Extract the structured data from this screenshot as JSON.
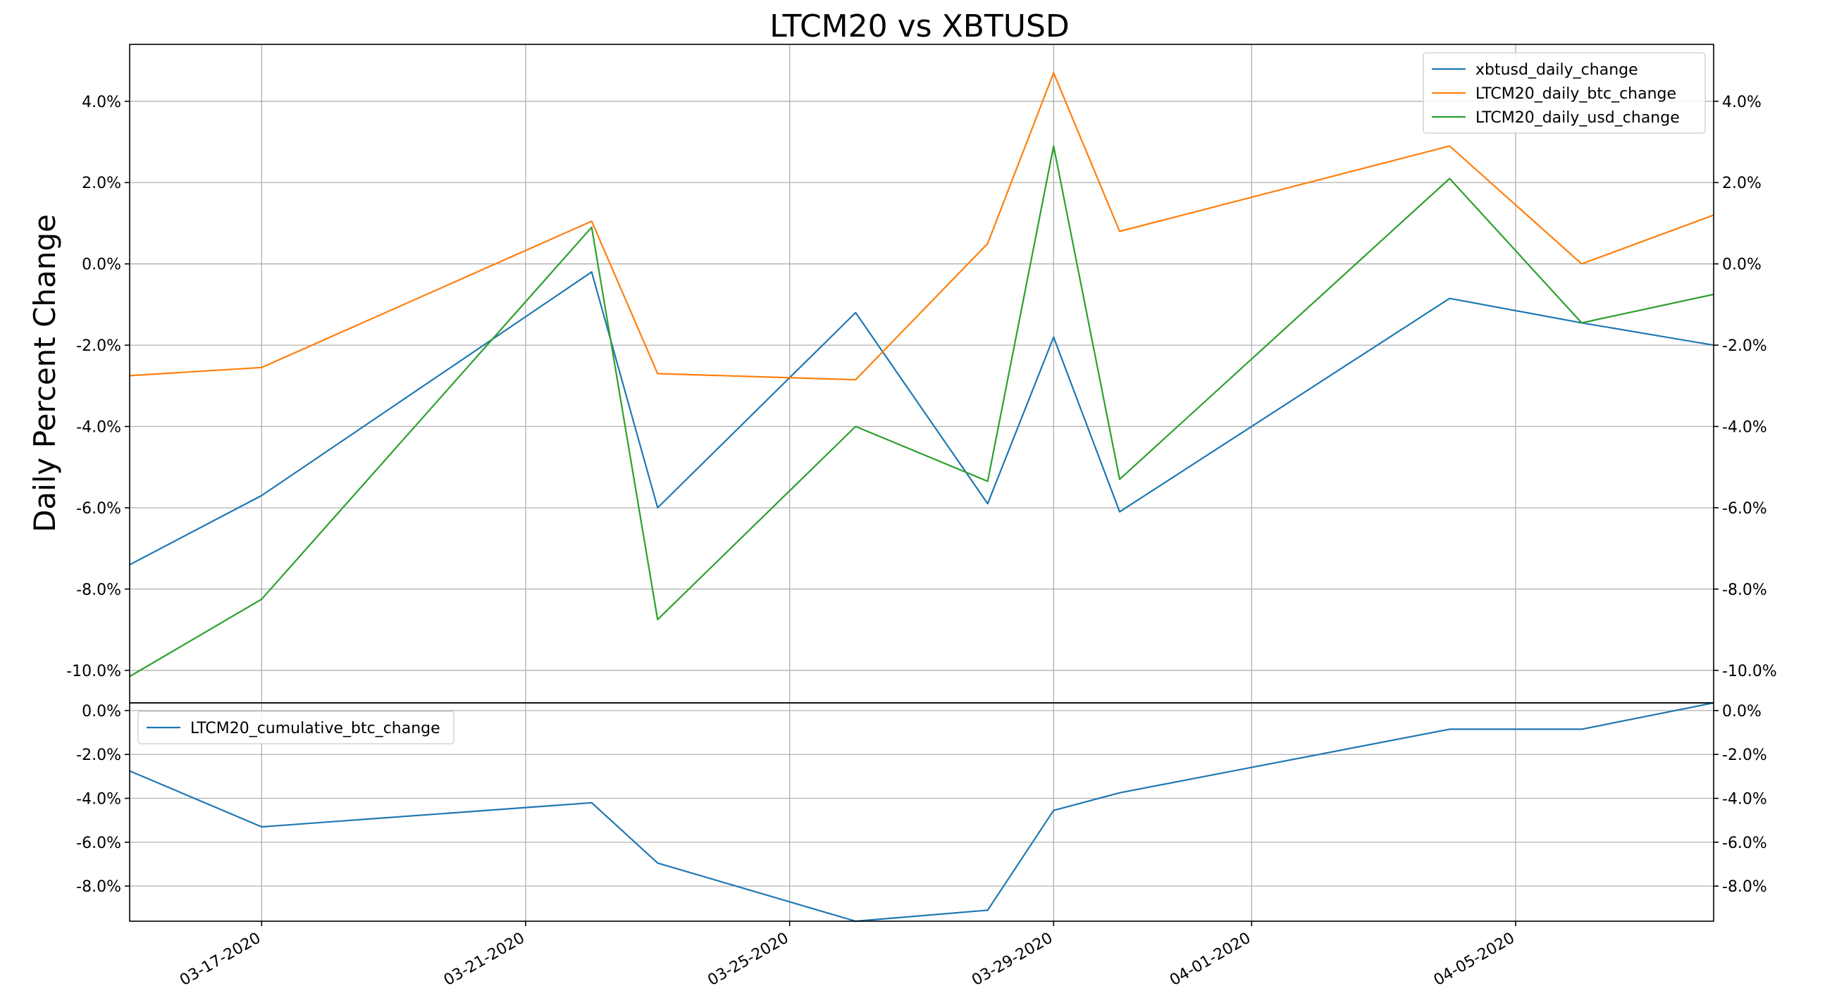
{
  "chart_data": {
    "type": "line",
    "title": "LTCM20 vs XBTUSD",
    "ylabel": "Daily Percent Change",
    "x": [
      "03-15-2020",
      "03-17-2020",
      "03-22-2020",
      "03-23-2020",
      "03-26-2020",
      "03-28-2020",
      "03-29-2020",
      "03-30-2020",
      "04-04-2020",
      "04-06-2020",
      "04-08-2020"
    ],
    "x_ticks": [
      "03-17-2020",
      "03-21-2020",
      "03-25-2020",
      "03-29-2020",
      "04-01-2020",
      "04-05-2020"
    ],
    "panels": [
      {
        "ylim": [
          -10.8,
          5.4
        ],
        "yticks": [
          4,
          2,
          0,
          -2,
          -4,
          -6,
          -8,
          -10
        ],
        "y_tick_labels": [
          "4.0%",
          "2.0%",
          "0.0%",
          "-2.0%",
          "-4.0%",
          "-6.0%",
          "-8.0%",
          "-10.0%"
        ],
        "legend_placement": "top-right",
        "grid": true,
        "series": [
          {
            "name": "xbtusd_daily_change",
            "color": "#1f77b4",
            "values": [
              -7.4,
              -5.7,
              -0.2,
              -6.0,
              -1.2,
              -5.9,
              -1.8,
              -6.1,
              -0.85,
              -1.45,
              -2.0
            ]
          },
          {
            "name": "LTCM20_daily_btc_change",
            "color": "#ff7f0e",
            "values": [
              -2.75,
              -2.55,
              1.05,
              -2.7,
              -2.85,
              0.5,
              4.7,
              0.8,
              2.9,
              0.0,
              1.2
            ]
          },
          {
            "name": "LTCM20_daily_usd_change",
            "color": "#2ca02c",
            "values": [
              -10.15,
              -8.25,
              0.9,
              -8.75,
              -4.0,
              -5.35,
              2.9,
              -5.3,
              2.1,
              -1.45,
              -0.75
            ]
          }
        ]
      },
      {
        "ylim": [
          -9.6,
          0.35
        ],
        "yticks": [
          0,
          -2,
          -4,
          -6,
          -8
        ],
        "y_tick_labels": [
          "0.0%",
          "-2.0%",
          "-4.0%",
          "-6.0%",
          "-8.0%"
        ],
        "legend_placement": "top-left",
        "grid": true,
        "series": [
          {
            "name": "LTCM20_cumulative_btc_change",
            "color": "#1f77b4",
            "values": [
              -2.75,
              -5.3,
              -4.2,
              -6.95,
              -9.6,
              -9.1,
              -4.55,
              -3.75,
              -0.85,
              -0.85,
              0.35
            ]
          }
        ]
      }
    ]
  }
}
